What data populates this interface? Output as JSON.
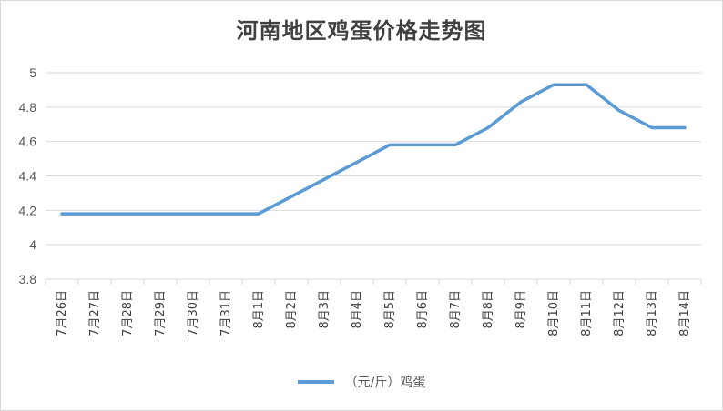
{
  "chart_data": {
    "type": "line",
    "title": "河南地区鸡蛋价格走势图",
    "xlabel": "",
    "ylabel": "",
    "categories": [
      "7月26日",
      "7月27日",
      "7月28日",
      "7月29日",
      "7月30日",
      "7月31日",
      "8月1日",
      "8月2日",
      "8月3日",
      "8月4日",
      "8月5日",
      "8月6日",
      "8月7日",
      "8月8日",
      "8月9日",
      "8月10日",
      "8月11日",
      "8月12日",
      "8月13日",
      "8月14日"
    ],
    "series": [
      {
        "name": "（元/斤）鸡蛋",
        "values": [
          4.18,
          4.18,
          4.18,
          4.18,
          4.18,
          4.18,
          4.18,
          4.28,
          4.38,
          4.48,
          4.58,
          4.58,
          4.58,
          4.68,
          4.83,
          4.93,
          4.93,
          4.78,
          4.68,
          4.68
        ]
      }
    ],
    "ylim": [
      3.8,
      5
    ],
    "yticks": [
      "3.8",
      "4",
      "4.2",
      "4.4",
      "4.6",
      "4.8",
      "5"
    ],
    "grid": true,
    "legend": "bottom",
    "colors": {
      "line": "#5b9bd5",
      "grid": "#d9d9d9",
      "text": "#595959"
    }
  }
}
